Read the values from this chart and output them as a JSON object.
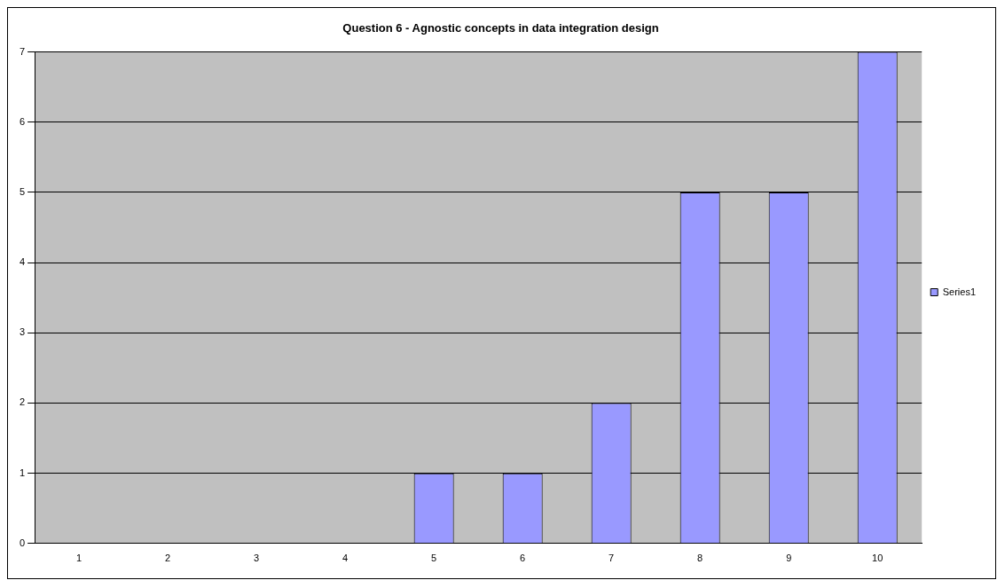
{
  "chart_data": {
    "type": "bar",
    "title": "Question 6 - Agnostic concepts in data integration design",
    "categories": [
      "1",
      "2",
      "3",
      "4",
      "5",
      "6",
      "7",
      "8",
      "9",
      "10"
    ],
    "series": [
      {
        "name": "Series1",
        "color": "#9999ff",
        "values": [
          0,
          0,
          0,
          0,
          1,
          1,
          2,
          5,
          5,
          7
        ]
      }
    ],
    "ylim": [
      0,
      7
    ],
    "yticks": [
      0,
      1,
      2,
      3,
      4,
      5,
      6,
      7
    ],
    "grid": "y",
    "legend": "right"
  }
}
